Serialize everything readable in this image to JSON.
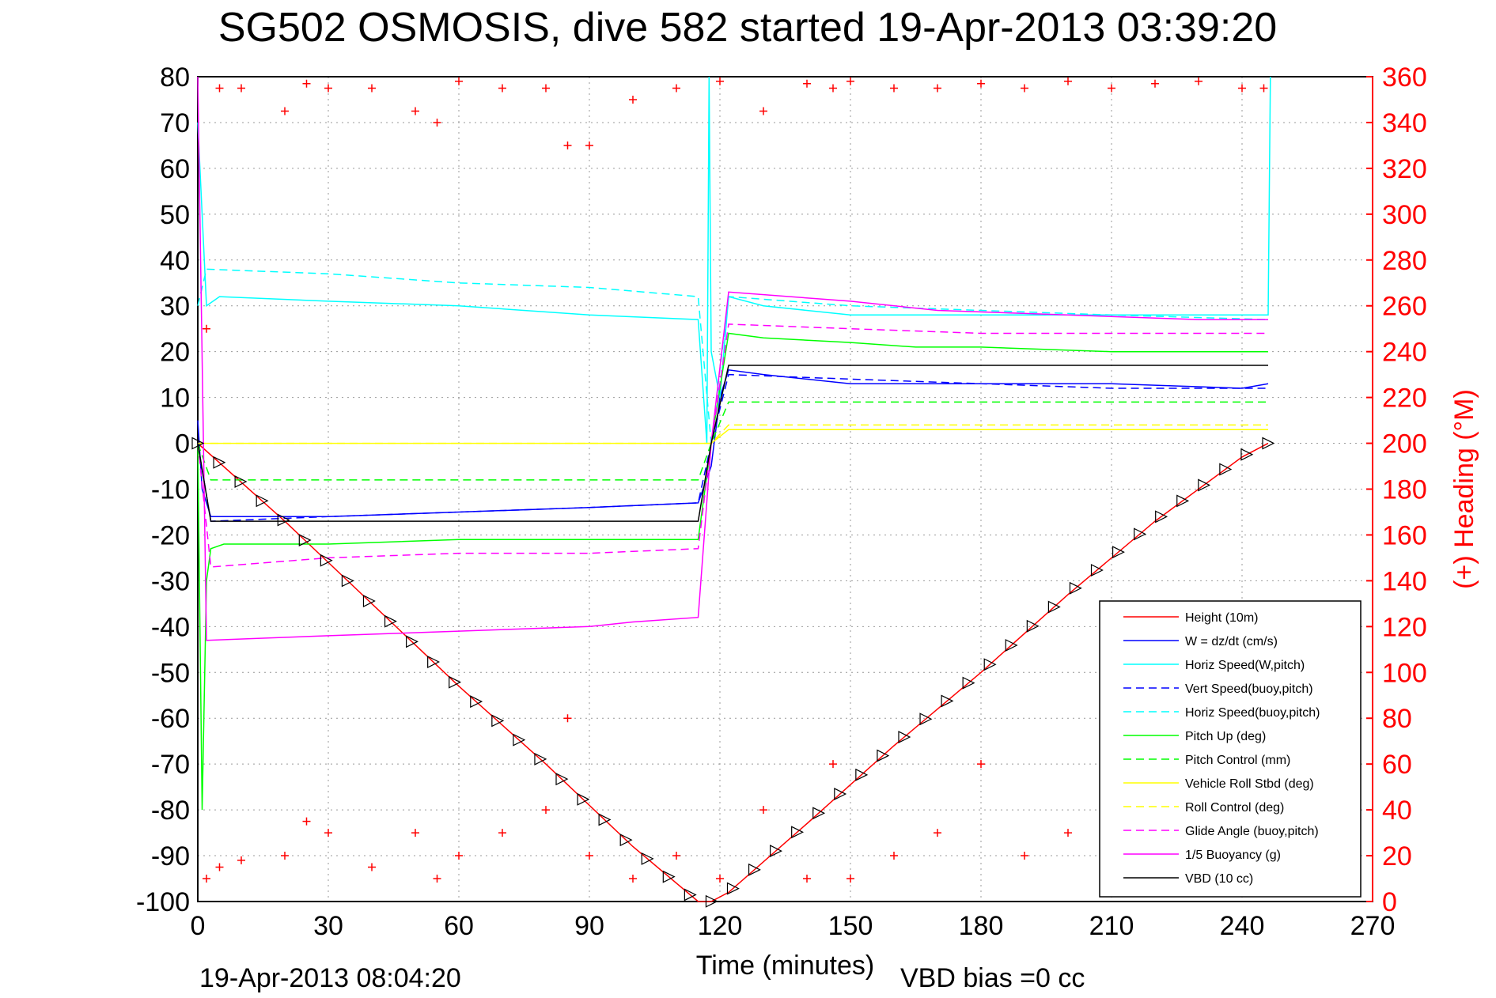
{
  "chart_data": {
    "type": "line",
    "title": "SG502 OSMOSIS, dive 582 started 19-Apr-2013 03:39:20",
    "xlabel": "Time (minutes)",
    "ylabel_right": "(+) Heading (°M)",
    "footer_left": "19-Apr-2013 08:04:20",
    "footer_right": "VBD bias =0 cc",
    "xlim": [
      0,
      270
    ],
    "ylim": [
      -100,
      80
    ],
    "y2lim": [
      0,
      360
    ],
    "x_ticks": [
      0,
      30,
      60,
      90,
      120,
      150,
      180,
      210,
      240,
      270
    ],
    "y_ticks": [
      80,
      70,
      60,
      50,
      40,
      30,
      20,
      10,
      0,
      -10,
      -20,
      -30,
      -40,
      -50,
      -60,
      -70,
      -80,
      -90,
      -100
    ],
    "y2_ticks": [
      360,
      340,
      320,
      300,
      280,
      260,
      240,
      220,
      200,
      180,
      160,
      140,
      120,
      100,
      80,
      60,
      40,
      20,
      0
    ],
    "x_tick_labels": [
      "0",
      "30",
      "60",
      "90",
      "120",
      "150",
      "180",
      "210",
      "240",
      "270"
    ],
    "y_tick_labels": [
      "80",
      "70",
      "60",
      "50",
      "40",
      "30",
      "20",
      "10",
      "0",
      "-10",
      "-20",
      "-30",
      "-40",
      "-50",
      "-60",
      "-70",
      "-80",
      "-90",
      "-100"
    ],
    "y2_tick_labels": [
      "360",
      "340",
      "320",
      "300",
      "280",
      "260",
      "240",
      "220",
      "200",
      "180",
      "160",
      "140",
      "120",
      "100",
      "80",
      "60",
      "40",
      "20",
      "0"
    ],
    "grid": true,
    "legend_position": "bottom-right",
    "series": [
      {
        "name": "Height (10m)",
        "color": "#ff0000",
        "style": "solid",
        "x": [
          0,
          20,
          40,
          60,
          80,
          100,
          115,
          118,
          122,
          140,
          160,
          180,
          200,
          220,
          240,
          246
        ],
        "y": [
          0,
          -17,
          -35,
          -53,
          -70,
          -88,
          -100,
          -100,
          -98,
          -83,
          -66,
          -50,
          -33,
          -17,
          -3,
          0
        ]
      },
      {
        "name": "W = dz/dt (cm/s)",
        "color": "#0000ff",
        "style": "solid",
        "x": [
          0,
          1,
          3,
          10,
          30,
          60,
          90,
          115,
          118,
          120,
          122,
          130,
          150,
          180,
          210,
          240,
          246
        ],
        "y": [
          5,
          -10,
          -16,
          -16,
          -16,
          -15,
          -14,
          -13,
          -5,
          10,
          16,
          15,
          13,
          13,
          13,
          12,
          13
        ]
      },
      {
        "name": "Horiz Speed(W,pitch)",
        "color": "#00ffff",
        "style": "solid",
        "x": [
          0,
          2,
          5,
          30,
          60,
          90,
          115,
          117,
          117.5,
          118,
          120,
          122,
          130,
          150,
          180,
          210,
          240,
          246,
          246.5
        ],
        "y": [
          70,
          30,
          32,
          31,
          30,
          28,
          27,
          0,
          80,
          20,
          10,
          32,
          30,
          28,
          28,
          28,
          28,
          28,
          80
        ]
      },
      {
        "name": "Vert Speed(buoy,pitch)",
        "color": "#0000ff",
        "style": "dashed",
        "x": [
          0,
          3,
          30,
          60,
          90,
          115,
          118,
          122,
          150,
          180,
          210,
          246
        ],
        "y": [
          0,
          -17,
          -16,
          -15,
          -14,
          -13,
          0,
          15,
          14,
          13,
          12,
          12
        ]
      },
      {
        "name": "Horiz Speed(buoy,pitch)",
        "color": "#00ffff",
        "style": "dashed",
        "x": [
          0,
          2,
          30,
          60,
          90,
          115,
          118,
          122,
          150,
          180,
          210,
          246
        ],
        "y": [
          30,
          38,
          37,
          35,
          34,
          32,
          0,
          32,
          30,
          29,
          28,
          27
        ]
      },
      {
        "name": "Pitch Up (deg)",
        "color": "#00ff00",
        "style": "solid",
        "x": [
          0,
          1,
          2,
          3,
          6,
          30,
          60,
          90,
          115,
          118,
          122,
          130,
          150,
          165,
          180,
          210,
          246
        ],
        "y": [
          0,
          -80,
          -30,
          -23,
          -22,
          -22,
          -21,
          -21,
          -21,
          0,
          24,
          23,
          22,
          21,
          21,
          20,
          20
        ]
      },
      {
        "name": "Pitch Control (mm)",
        "color": "#00ff00",
        "style": "dashed",
        "x": [
          0,
          3,
          115,
          118,
          122,
          246
        ],
        "y": [
          0,
          -8,
          -8,
          0,
          9,
          9
        ]
      },
      {
        "name": "Vehicle Roll Stbd (deg)",
        "color": "#ffff00",
        "style": "solid",
        "x": [
          0,
          3,
          60,
          115,
          118,
          122,
          150,
          180,
          210,
          246
        ],
        "y": [
          0,
          0,
          0,
          0,
          0,
          3,
          3,
          3,
          3,
          3
        ]
      },
      {
        "name": "Roll Control (deg)",
        "color": "#ffff00",
        "style": "dashed",
        "x": [
          0,
          3,
          60,
          115,
          118,
          122,
          180,
          246
        ],
        "y": [
          0,
          0,
          0,
          0,
          0,
          4,
          4,
          4
        ]
      },
      {
        "name": "Glide Angle (buoy,pitch)",
        "color": "#ff00ff",
        "style": "dashed",
        "x": [
          0,
          3,
          30,
          60,
          90,
          115,
          118,
          122,
          150,
          180,
          210,
          246
        ],
        "y": [
          0,
          -27,
          -25,
          -24,
          -24,
          -23,
          0,
          26,
          25,
          24,
          24,
          24
        ]
      },
      {
        "name": "1/5 Buoyancy (g)",
        "color": "#ff00ff",
        "style": "solid",
        "x": [
          0,
          2,
          30,
          60,
          90,
          100,
          115,
          118,
          122,
          150,
          170,
          200,
          230,
          246
        ],
        "y": [
          80,
          -43,
          -42,
          -41,
          -40,
          -39,
          -38,
          0,
          33,
          31,
          29,
          28,
          27,
          27
        ]
      },
      {
        "name": "VBD (10 cc)",
        "color": "#000000",
        "style": "solid",
        "x": [
          0,
          3,
          115,
          118,
          122,
          246
        ],
        "y": [
          0,
          -17,
          -17,
          0,
          17,
          17
        ]
      },
      {
        "name": "Heading",
        "color": "#ff0000",
        "style": "points",
        "axis": "right",
        "x": [
          2,
          5,
          10,
          20,
          25,
          30,
          40,
          50,
          55,
          60,
          70,
          80,
          85,
          90,
          100,
          110,
          120,
          130,
          140,
          146,
          150,
          160,
          170,
          180,
          190,
          200,
          210,
          220,
          230,
          240,
          245
        ],
        "y": [
          250,
          355,
          355,
          345,
          357,
          355,
          355,
          345,
          340,
          358,
          355,
          355,
          330,
          330,
          350,
          355,
          358,
          345,
          357,
          355,
          358,
          355,
          355,
          357,
          355,
          358,
          355,
          357,
          358,
          355,
          355
        ],
        "y_low": [
          10,
          15,
          18,
          20,
          35,
          30,
          15,
          30,
          10,
          20,
          30,
          40,
          80,
          20,
          10,
          20,
          10,
          40,
          10,
          60,
          10,
          20,
          30,
          60,
          20,
          30,
          10,
          40,
          20,
          30,
          10
        ]
      }
    ]
  }
}
